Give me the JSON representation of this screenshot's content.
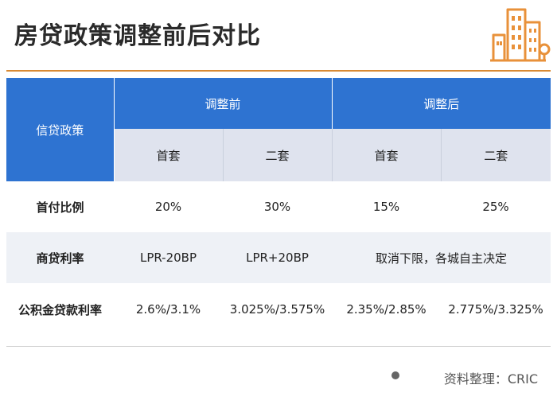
{
  "page": {
    "title": "房贷政策调整前后对比",
    "source": "资料整理：CRIC"
  },
  "table": {
    "header": {
      "policy_label": "信贷政策",
      "before_label": "调整前",
      "after_label": "调整后",
      "sub_first": "首套",
      "sub_second": "二套"
    },
    "rows": [
      {
        "label": "首付比例",
        "before_first": "20%",
        "before_second": "30%",
        "after_first": "15%",
        "after_second": "25%"
      },
      {
        "label": "商贷利率",
        "before_first": "LPR-20BP",
        "before_second": "LPR+20BP",
        "after_merged": "取消下限，各城自主决定"
      },
      {
        "label": "公积金贷款利率",
        "before_first": "2.6%/3.1%",
        "before_second": "3.025%/3.575%",
        "after_first": "2.35%/2.85%",
        "after_second": "2.775%/3.325%"
      }
    ]
  },
  "colors": {
    "accent_orange": "#d88a34",
    "header_blue": "#2e73d1",
    "subheader_grey": "#dfe3ee"
  }
}
